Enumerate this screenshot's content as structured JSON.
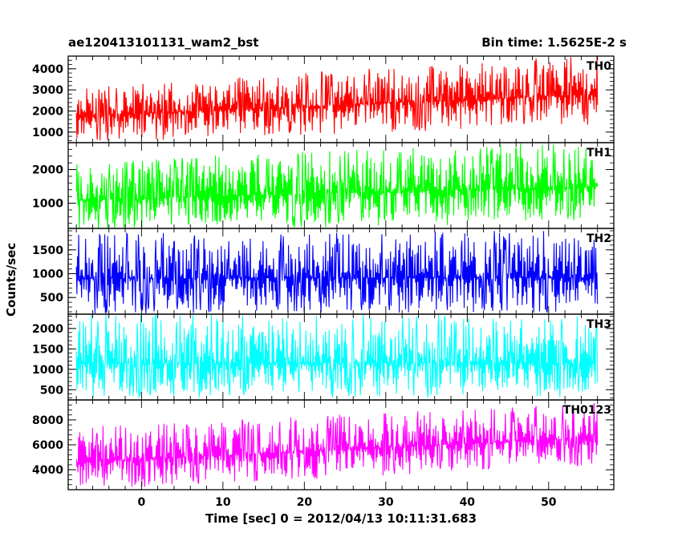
{
  "chart_data": {
    "type": "line",
    "title_left": "ae120413101131_wam2_bst",
    "title_right": "Bin time: 1.5625E-2 s",
    "xlabel": "Time [sec] 0 = 2012/04/13 10:11:31.683",
    "ylabel": "Counts/sec",
    "xlim": [
      -9,
      58
    ],
    "x_data_range": [
      -8,
      56
    ],
    "xticks": [
      0,
      10,
      20,
      30,
      40,
      50
    ],
    "xtick_labels": [
      "0",
      "10",
      "20",
      "30",
      "40",
      "50"
    ],
    "grid": false,
    "panels": [
      {
        "name": "TH0",
        "color": "#ff0000",
        "ylim": [
          500,
          4600
        ],
        "yticks": [
          1000,
          2000,
          3000,
          4000
        ],
        "base_start": 1750,
        "base_end": 2800,
        "low_start": 700,
        "low_end": 1600,
        "high_start": 2800,
        "high_end": 4300
      },
      {
        "name": "TH1",
        "color": "#00ff00",
        "ylim": [
          250,
          2800
        ],
        "yticks": [
          1000,
          2000
        ],
        "base_start": 1100,
        "base_end": 1500,
        "low_start": 350,
        "low_end": 600,
        "high_start": 2000,
        "high_end": 2600
      },
      {
        "name": "TH2",
        "color": "#0000ff",
        "ylim": [
          150,
          1950
        ],
        "yticks": [
          500,
          1000,
          1500
        ],
        "base_start": 900,
        "base_end": 920,
        "low_start": 300,
        "low_end": 320,
        "high_start": 1650,
        "high_end": 1700
      },
      {
        "name": "TH3",
        "color": "#00ffff",
        "ylim": [
          250,
          2350
        ],
        "yticks": [
          500,
          1000,
          1500,
          2000
        ],
        "base_start": 1150,
        "base_end": 1150,
        "low_start": 450,
        "low_end": 470,
        "high_start": 2100,
        "high_end": 2100
      },
      {
        "name": "TH0123",
        "color": "#ff00ff",
        "ylim": [
          2400,
          9600
        ],
        "yticks": [
          4000,
          6000,
          8000
        ],
        "base_start": 4600,
        "base_end": 6600,
        "low_start": 2700,
        "low_end": 4800,
        "high_start": 6800,
        "high_end": 8800
      }
    ]
  }
}
